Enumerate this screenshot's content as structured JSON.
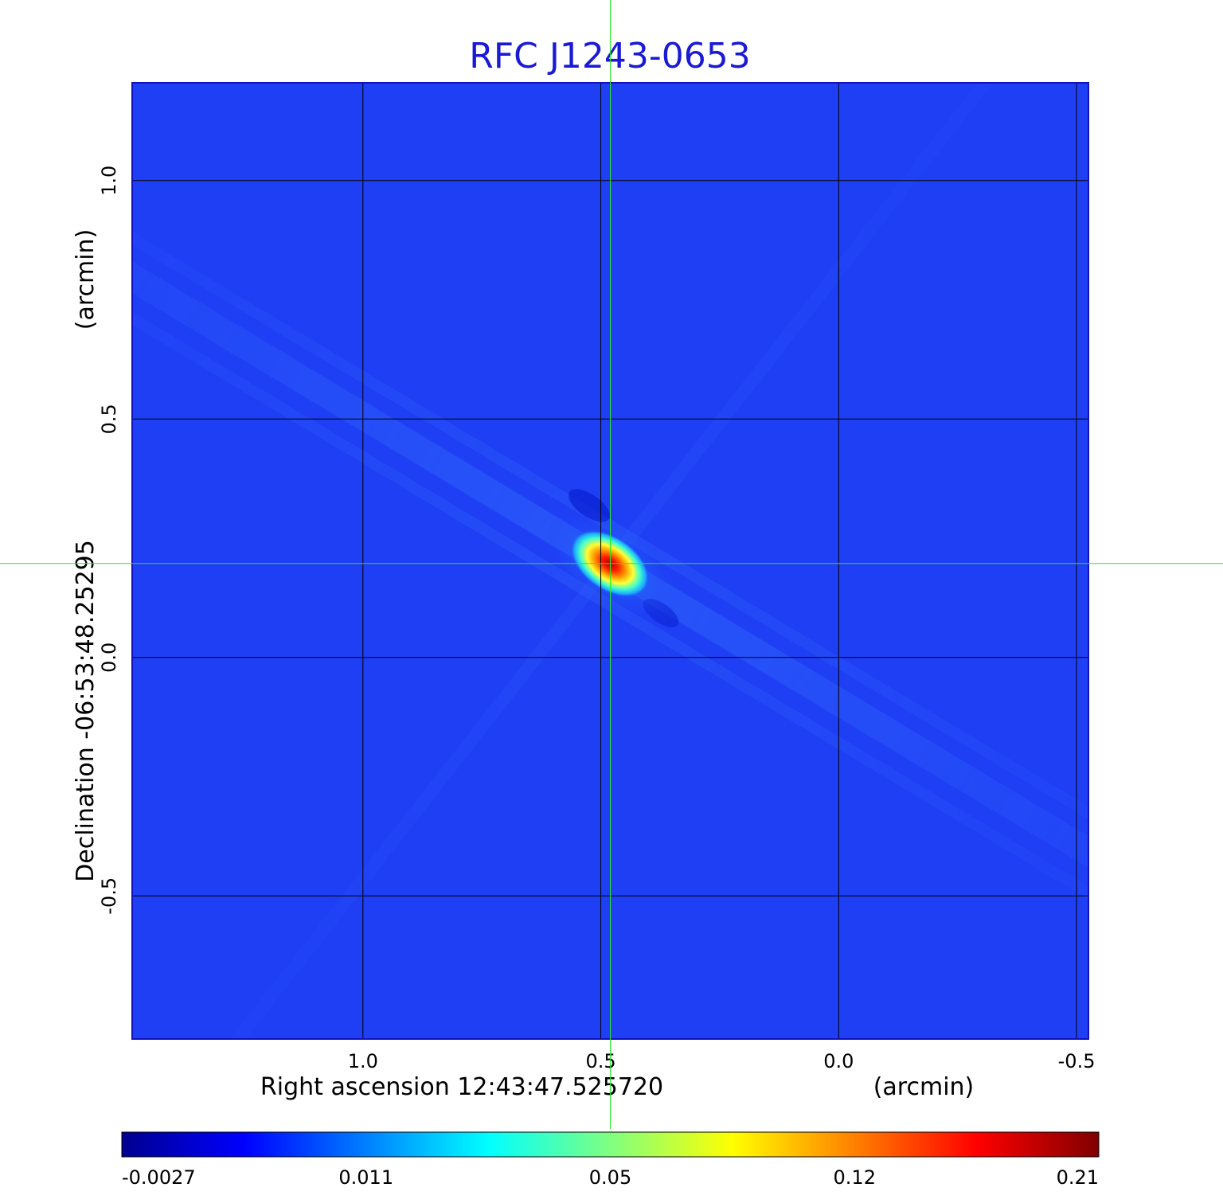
{
  "chart_data": {
    "type": "heatmap",
    "title": "RFC J1243-0653",
    "xlabel": "Right ascension  12:43:47.525720",
    "xunit": "(arcmin)",
    "ylabel": "Declination  -06:53:48.25295",
    "yunit": "(arcmin)",
    "xlim": [
      1.485,
      -0.525
    ],
    "ylim": [
      -0.8,
      1.205
    ],
    "x_ticks": [
      1.0,
      0.5,
      0.0,
      -0.5
    ],
    "x_tick_labels": [
      "1.0",
      "0.5",
      "0.0",
      "-0.5"
    ],
    "y_ticks": [
      1.0,
      0.5,
      0.0,
      -0.5
    ],
    "y_tick_labels": [
      "1.0",
      "0.5",
      "0.0",
      "-0.5"
    ],
    "grid": true,
    "crosshair": {
      "x": 0.48,
      "y": 0.197
    },
    "source_peak": {
      "x": 0.48,
      "y": 0.197,
      "value": 0.21
    },
    "colorbar": {
      "tick_labels": [
        "-0.0027",
        "0.011",
        "0.05",
        "0.12",
        "0.21"
      ],
      "min": -0.0027,
      "max": 0.21,
      "colormap": "jet"
    },
    "colors": {
      "title": "#1a1ad6",
      "background": "#1f3ff5",
      "grid": "#000000",
      "crosshair": "#22ee22"
    }
  }
}
